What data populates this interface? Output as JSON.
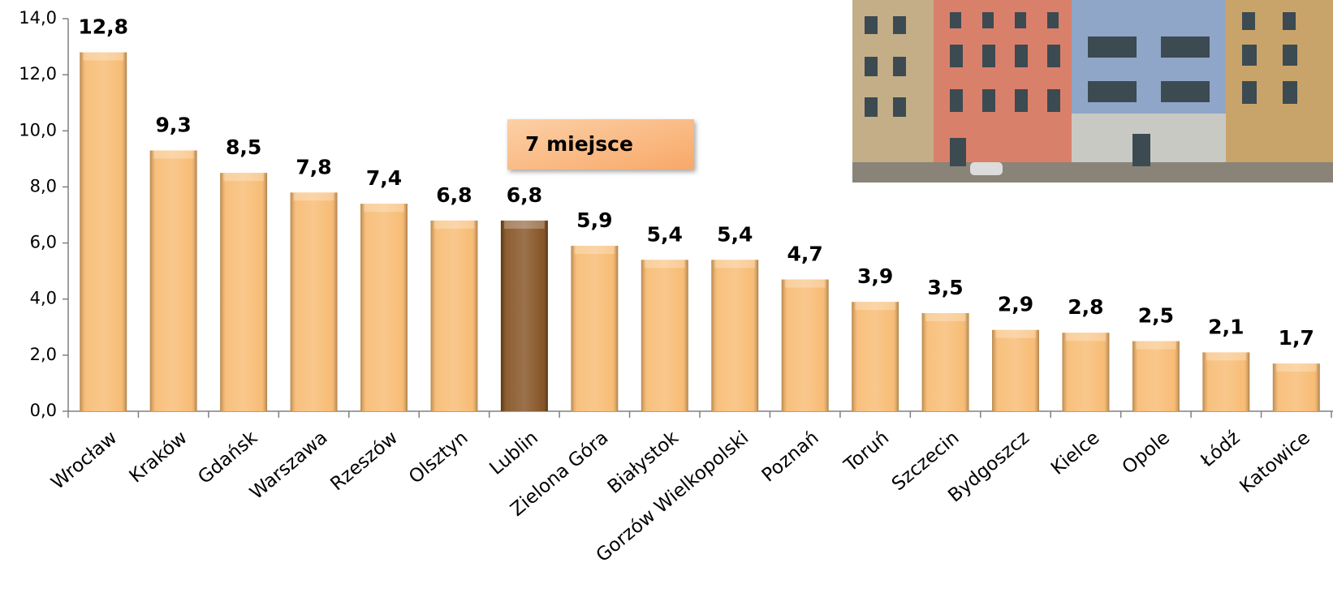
{
  "chart_data": {
    "type": "bar",
    "categories": [
      "Wrocław",
      "Kraków",
      "Gdańsk",
      "Warszawa",
      "Rzeszów",
      "Olsztyn",
      "Lublin",
      "Zielona Góra",
      "Białystok",
      "Gorzów Wielkopolski",
      "Poznań",
      "Toruń",
      "Szczecin",
      "Bydgoszcz",
      "Kielce",
      "Opole",
      "Łódź",
      "Katowice"
    ],
    "values": [
      12.8,
      9.3,
      8.5,
      7.8,
      7.4,
      6.8,
      6.8,
      5.9,
      5.4,
      5.4,
      4.7,
      3.9,
      3.5,
      2.9,
      2.8,
      2.5,
      2.1,
      1.7
    ],
    "value_labels": [
      "12,8",
      "9,3",
      "8,5",
      "7,8",
      "7,4",
      "6,8",
      "6,8",
      "5,9",
      "5,4",
      "5,4",
      "4,7",
      "3,9",
      "3,5",
      "2,9",
      "2,8",
      "2,5",
      "2,1",
      "1,7"
    ],
    "colors": [
      "#f7b566",
      "#f7b566",
      "#f7b566",
      "#f7b566",
      "#f7b566",
      "#f7b566",
      "#7a4310",
      "#f7b566",
      "#f7b566",
      "#f7b566",
      "#f7b566",
      "#f7b566",
      "#f7b566",
      "#f7b566",
      "#f7b566",
      "#f7b566",
      "#f7b566",
      "#f7b566"
    ],
    "ylim": [
      0,
      14
    ],
    "yticks": [
      {
        "value": 0,
        "label": "0,0"
      },
      {
        "value": 2,
        "label": "2,0"
      },
      {
        "value": 4,
        "label": "4,0"
      },
      {
        "value": 6,
        "label": "6,0"
      },
      {
        "value": 8,
        "label": "8,0"
      },
      {
        "value": 10,
        "label": "10,0"
      },
      {
        "value": 12,
        "label": "12,0"
      },
      {
        "value": 14,
        "label": "14,0"
      }
    ],
    "annotation": "7 miejsce"
  }
}
